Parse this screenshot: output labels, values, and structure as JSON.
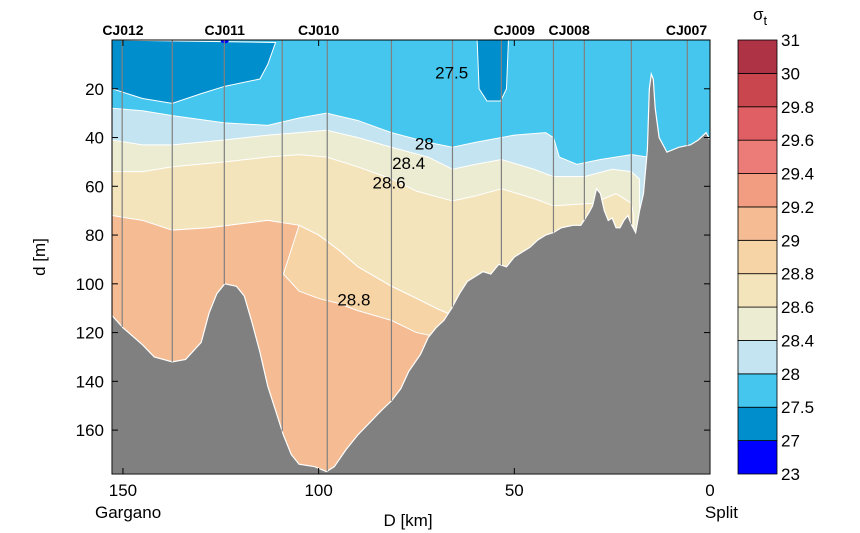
{
  "chart_data": {
    "type": "contourf",
    "title": "",
    "xlabel": "D [km]",
    "ylabel": "d [m]",
    "xlim": [
      152.8,
      0
    ],
    "ylim": [
      0,
      178
    ],
    "x_ticks": [
      150,
      100,
      50,
      0
    ],
    "x_tick_labels": [
      "150",
      "100",
      "50",
      "0"
    ],
    "x_end_labels": {
      "left": "Gargano",
      "right": "Split"
    },
    "y_ticks": [
      20,
      40,
      60,
      80,
      100,
      120,
      140,
      160
    ],
    "y_tick_labels": [
      "20",
      "40",
      "60",
      "80",
      "100",
      "120",
      "140",
      "160"
    ],
    "stations": [
      {
        "name": "CJ012",
        "D": 150
      },
      {
        "name": "CJ011",
        "D": 124
      },
      {
        "name": "CJ010",
        "D": 100
      },
      {
        "name": "CJ009",
        "D": 50
      },
      {
        "name": "CJ008",
        "D": 36
      },
      {
        "name": "CJ007",
        "D": 6
      }
    ],
    "profile_lines_D": [
      150.2,
      137.4,
      124.1,
      109.3,
      97.8,
      81.4,
      65.8,
      53.3,
      40.0,
      32.1,
      20.1,
      5.8
    ],
    "colorbar": {
      "label": "σ",
      "label_sub": "t",
      "levels": [
        "23",
        "27",
        "27.5",
        "28",
        "28.4",
        "28.6",
        "28.8",
        "29",
        "29.2",
        "29.4",
        "29.6",
        "29.8",
        "30",
        "31"
      ],
      "colors": [
        "#0000ff",
        "#008fcc",
        "#44c6ee",
        "#c3e4f0",
        "#ececd2",
        "#f4e4bb",
        "#f6d4a6",
        "#f5bc93",
        "#f29d82",
        "#ec7c78",
        "#df5f64",
        "#c9464f",
        "#ad3345"
      ]
    },
    "contour_labels": [
      {
        "text": "27.5",
        "D": 66,
        "d": 13
      },
      {
        "text": "28",
        "D": 73,
        "d": 42
      },
      {
        "text": "28.4",
        "D": 77,
        "d": 50
      },
      {
        "text": "28.6",
        "D": 82,
        "d": 58
      },
      {
        "text": "28.8",
        "D": 91,
        "d": 106
      }
    ],
    "bathymetry_color": "#808080",
    "iso_27": [
      [
        152.8,
        20
      ],
      [
        145,
        24
      ],
      [
        137.4,
        26
      ],
      [
        130,
        22
      ],
      [
        124,
        19
      ],
      [
        115,
        16
      ],
      [
        113,
        10
      ],
      [
        111,
        1
      ],
      [
        152.8,
        0
      ]
    ],
    "iso_27_pocket": [
      [
        59.5,
        0
      ],
      [
        59,
        20
      ],
      [
        57,
        25
      ],
      [
        53.5,
        25
      ],
      [
        52,
        20
      ],
      [
        51.5,
        0
      ]
    ],
    "iso_27_5": [
      [
        152.8,
        28
      ],
      [
        145,
        29
      ],
      [
        137.4,
        31
      ],
      [
        124,
        34
      ],
      [
        113,
        35
      ],
      [
        105,
        32
      ],
      [
        98,
        30
      ],
      [
        90,
        33
      ],
      [
        81.4,
        38
      ],
      [
        72,
        42
      ],
      [
        65.8,
        44
      ],
      [
        60,
        42
      ],
      [
        50,
        39
      ],
      [
        42,
        38
      ],
      [
        40,
        40
      ],
      [
        38.5,
        48
      ],
      [
        34,
        51
      ],
      [
        28,
        49
      ],
      [
        20.1,
        47
      ],
      [
        16,
        48
      ]
    ],
    "iso_28": [
      [
        152.8,
        41
      ],
      [
        145,
        43
      ],
      [
        137.4,
        43
      ],
      [
        124,
        41
      ],
      [
        113,
        39
      ],
      [
        105,
        38
      ],
      [
        98,
        37
      ],
      [
        90,
        40
      ],
      [
        81.4,
        44
      ],
      [
        72,
        48
      ],
      [
        65.8,
        53
      ],
      [
        60,
        51
      ],
      [
        53.3,
        49
      ],
      [
        45,
        53
      ],
      [
        40,
        56
      ],
      [
        32,
        56
      ],
      [
        25,
        53
      ],
      [
        20.1,
        54
      ],
      [
        18,
        57
      ]
    ],
    "iso_28_4": [
      [
        152.8,
        54
      ],
      [
        145,
        54
      ],
      [
        137.4,
        52
      ],
      [
        124,
        50
      ],
      [
        113,
        48
      ],
      [
        105,
        47
      ],
      [
        98,
        48
      ],
      [
        90,
        52
      ],
      [
        81.4,
        57
      ],
      [
        75,
        62
      ],
      [
        65.8,
        66
      ],
      [
        60,
        64
      ],
      [
        53.3,
        61
      ],
      [
        45,
        65
      ],
      [
        40,
        68
      ],
      [
        30,
        67
      ],
      [
        24,
        63
      ],
      [
        20.1,
        67
      ],
      [
        19.5,
        72
      ]
    ],
    "iso_28_6": [
      [
        152.8,
        72
      ],
      [
        145,
        74
      ],
      [
        137.4,
        78
      ],
      [
        128,
        77
      ],
      [
        113,
        74
      ],
      [
        105,
        76
      ],
      [
        100,
        80
      ],
      [
        95,
        86
      ],
      [
        90,
        93
      ],
      [
        81.4,
        101
      ],
      [
        75,
        106
      ],
      [
        70,
        110
      ],
      [
        65.8,
        113
      ],
      [
        55,
        115
      ],
      [
        45,
        118
      ],
      [
        40,
        122
      ]
    ],
    "iso_28_8": [
      [
        109,
        96
      ],
      [
        105,
        103
      ],
      [
        100,
        106
      ],
      [
        95,
        108
      ],
      [
        90,
        111
      ],
      [
        81.4,
        115
      ],
      [
        75,
        120
      ],
      [
        65.8,
        123
      ],
      [
        55,
        122
      ],
      [
        47,
        119
      ]
    ],
    "bathymetry": [
      [
        152.8,
        113
      ],
      [
        150,
        118
      ],
      [
        145,
        125
      ],
      [
        142,
        130
      ],
      [
        137.4,
        132
      ],
      [
        134,
        131
      ],
      [
        130,
        124
      ],
      [
        128,
        112
      ],
      [
        126,
        104
      ],
      [
        124,
        100
      ],
      [
        121,
        101
      ],
      [
        119,
        105
      ],
      [
        117,
        116
      ],
      [
        115,
        128
      ],
      [
        113,
        142
      ],
      [
        111,
        152
      ],
      [
        109,
        162
      ],
      [
        107,
        170
      ],
      [
        105,
        174
      ],
      [
        101,
        175
      ],
      [
        98,
        177
      ],
      [
        96,
        175
      ],
      [
        93,
        168
      ],
      [
        90,
        162
      ],
      [
        87,
        157
      ],
      [
        84,
        152
      ],
      [
        81.4,
        148
      ],
      [
        79,
        143
      ],
      [
        77,
        136
      ],
      [
        74,
        129
      ],
      [
        72,
        122
      ],
      [
        70,
        118
      ],
      [
        68,
        115
      ],
      [
        66,
        110
      ],
      [
        64,
        104
      ],
      [
        62,
        99
      ],
      [
        60,
        97
      ],
      [
        58,
        95
      ],
      [
        56,
        96
      ],
      [
        54,
        92
      ],
      [
        52,
        93
      ],
      [
        50,
        89
      ],
      [
        48,
        87
      ],
      [
        46,
        85
      ],
      [
        44,
        82
      ],
      [
        42,
        80
      ],
      [
        40,
        79
      ],
      [
        38,
        77
      ],
      [
        35,
        76
      ],
      [
        33,
        76
      ],
      [
        31,
        71
      ],
      [
        30,
        68
      ],
      [
        29,
        61
      ],
      [
        28,
        63
      ],
      [
        27,
        70
      ],
      [
        26,
        74
      ],
      [
        25,
        73
      ],
      [
        24,
        77
      ],
      [
        23,
        77
      ],
      [
        22,
        74
      ],
      [
        21,
        72
      ],
      [
        20,
        76
      ],
      [
        19,
        79
      ],
      [
        18,
        70
      ],
      [
        17,
        63
      ],
      [
        16,
        45
      ],
      [
        15.5,
        20
      ],
      [
        15,
        14
      ],
      [
        14.5,
        16
      ],
      [
        14,
        28
      ],
      [
        13,
        40
      ],
      [
        11,
        46
      ],
      [
        8,
        44
      ],
      [
        5,
        43
      ],
      [
        3,
        41
      ],
      [
        1,
        38
      ],
      [
        0,
        41
      ]
    ]
  }
}
